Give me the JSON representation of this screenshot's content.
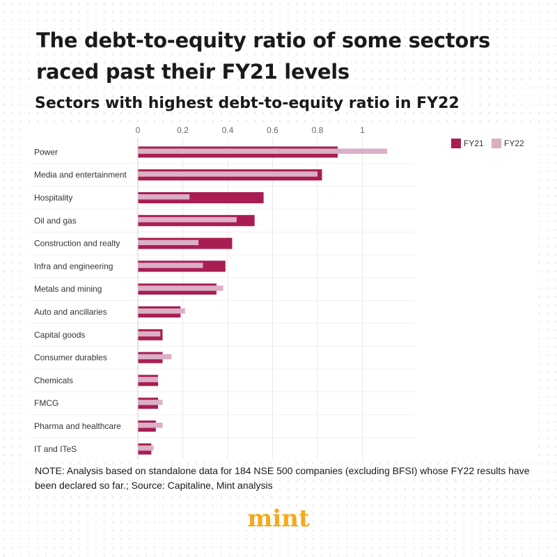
{
  "title": "The debt-to-equity ratio of some sectors raced past their FY21 levels",
  "subtitle": "Sectors with highest debt-to-equity ratio in FY22",
  "note": "NOTE: Analysis based on standalone data for 184 NSE 500 companies (excluding BFSI) whose FY22 results have been declared so far.; Source: Capitaline, Mint analysis",
  "brand": "mint",
  "colors": {
    "fy21": "#a81e52",
    "fy22": "#dbafc6",
    "grid": "#e8e8e8",
    "brand": "#f7a81b"
  },
  "chart_data": {
    "type": "bar",
    "orientation": "horizontal",
    "categories": [
      "Power",
      "Media and entertainment",
      "Hospitality",
      "Oil and gas",
      "Construction and realty",
      "Infra and engineering",
      "Metals and mining",
      "Auto and ancillaries",
      "Capital goods",
      "Consumer durables",
      "Chemicals",
      "FMCG",
      "Pharma and healthcare",
      "IT and ITeS"
    ],
    "series": [
      {
        "name": "FY21",
        "values": [
          0.89,
          0.82,
          0.56,
          0.52,
          0.42,
          0.39,
          0.35,
          0.19,
          0.11,
          0.11,
          0.09,
          0.09,
          0.08,
          0.06
        ]
      },
      {
        "name": "FY22",
        "values": [
          1.11,
          0.8,
          0.23,
          0.44,
          0.27,
          0.29,
          0.38,
          0.21,
          0.1,
          0.15,
          0.09,
          0.11,
          0.11,
          0.07
        ]
      }
    ],
    "xlim": [
      0,
      1.1
    ],
    "x_ticks": [
      "0",
      "0.2",
      "0.4",
      "0.6",
      "0.8",
      "1"
    ],
    "x_tick_values": [
      0,
      0.2,
      0.4,
      0.6,
      0.8,
      1
    ],
    "grid": true,
    "legend": "top-right"
  }
}
